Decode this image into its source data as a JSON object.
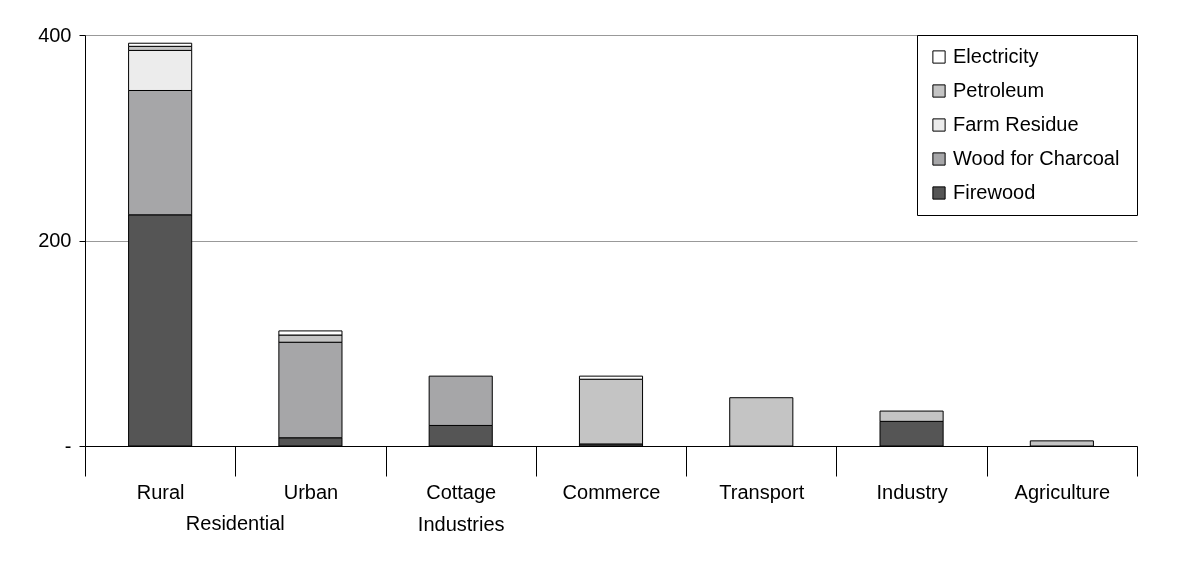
{
  "chart_data": {
    "type": "bar",
    "stacked": true,
    "categories": [
      "Rural",
      "Urban",
      "Cottage Industries",
      "Commerce",
      "Transport",
      "Industry",
      "Agriculture"
    ],
    "series": [
      {
        "name": "Firewood",
        "color": "#555555",
        "values": [
          225,
          8,
          20,
          2,
          null,
          24,
          null
        ]
      },
      {
        "name": "Wood  for Charcoal",
        "color": "#a6a6a8",
        "values": [
          121,
          93,
          48,
          null,
          null,
          null,
          null
        ]
      },
      {
        "name": "Farm Residue",
        "color": "#ececec",
        "values": [
          39,
          null,
          null,
          null,
          null,
          null,
          null
        ]
      },
      {
        "name": "Petroleum",
        "color": "#c4c4c4",
        "values": [
          4,
          7,
          null,
          63,
          47,
          10,
          5
        ]
      },
      {
        "name": "Electricity",
        "color": "#ffffff",
        "values": [
          3,
          4,
          null,
          3,
          null,
          null,
          null
        ]
      }
    ],
    "ylim": [
      0,
      400
    ],
    "yticks": [
      {
        "value": 0,
        "label": "-"
      },
      200,
      400
    ],
    "grid": "y",
    "legend": "top right",
    "annotations": [
      "Residential"
    ]
  }
}
